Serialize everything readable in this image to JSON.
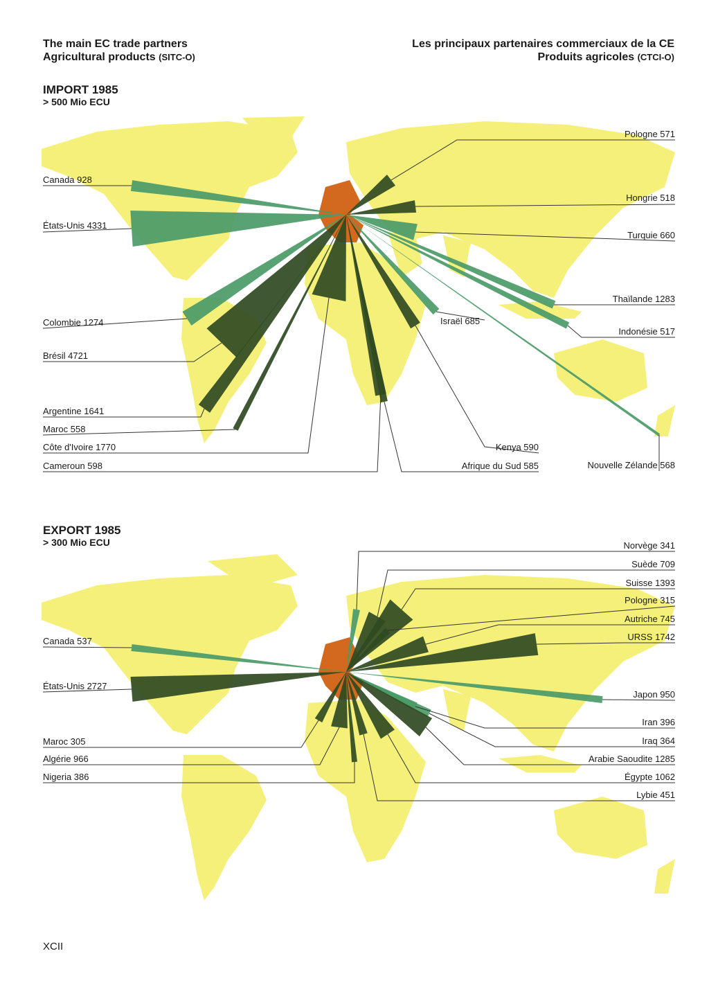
{
  "header": {
    "left_title": "The main EC trade partners",
    "left_subtitle": "Agricultural products",
    "left_code": "(SITC-O)",
    "right_title": "Les principaux partenaires commerciaux de la CE",
    "right_subtitle": "Produits agricoles",
    "right_code": "(CTCI-O)"
  },
  "import_section": {
    "title": "IMPORT 1985",
    "threshold": "> 500 Mio ECU",
    "partners": [
      {
        "label": "Pologne 571"
      },
      {
        "label": "Canada 928"
      },
      {
        "label": "Hongrie 518"
      },
      {
        "label": "États-Unis 4331"
      },
      {
        "label": "Turquie 660"
      },
      {
        "label": "Thaïlande 1283"
      },
      {
        "label": "Colombie 1274"
      },
      {
        "label": "Israël 685"
      },
      {
        "label": "Indonésie 517"
      },
      {
        "label": "Brésil 4721"
      },
      {
        "label": "Argentine 1641"
      },
      {
        "label": "Maroc 558"
      },
      {
        "label": "Côte d'Ivoire 1770"
      },
      {
        "label": "Kenya 590"
      },
      {
        "label": "Cameroun 598"
      },
      {
        "label": "Afrique du Sud 585"
      },
      {
        "label": "Nouvelle Zélande 568"
      }
    ]
  },
  "export_section": {
    "title": "EXPORT 1985",
    "threshold": "> 300 Mio ECU",
    "partners": [
      {
        "label": "Norvège 341"
      },
      {
        "label": "Suède 709"
      },
      {
        "label": "Suisse 1393"
      },
      {
        "label": "Pologne 315"
      },
      {
        "label": "Autriche 745"
      },
      {
        "label": "URSS 1742"
      },
      {
        "label": "Canada 537"
      },
      {
        "label": "États-Unis 2727"
      },
      {
        "label": "Japon 950"
      },
      {
        "label": "Iran 396"
      },
      {
        "label": "Maroc 305"
      },
      {
        "label": "Iraq 364"
      },
      {
        "label": "Algérie 966"
      },
      {
        "label": "Arabie Saoudite 1285"
      },
      {
        "label": "Nigeria 386"
      },
      {
        "label": "Égypte 1062"
      },
      {
        "label": "Lybie 451"
      }
    ]
  },
  "colors": {
    "land": "#f5f07a",
    "ec": "#d2691e",
    "flow": "#4a9a68",
    "flow_dark": "#2f4a22",
    "line": "#333333"
  },
  "page_number": "XCII"
}
